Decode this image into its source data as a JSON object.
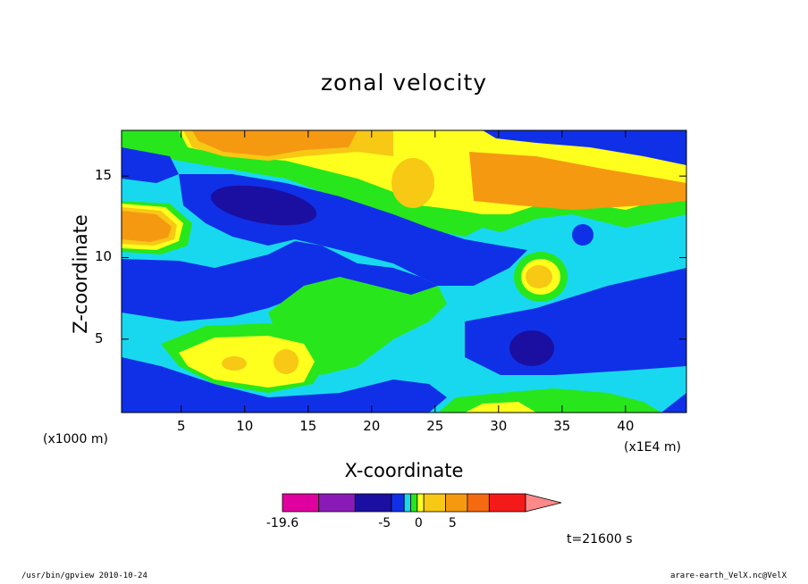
{
  "chart_data": {
    "type": "heatmap",
    "title": "zonal velocity",
    "xlabel": "X-coordinate",
    "ylabel": "Z-coordinate",
    "x_unit": "(x1000 m)",
    "x_scale": "(x1E4 m)",
    "xlim": [
      0.3,
      44.8
    ],
    "ylim": [
      0.5,
      17.8
    ],
    "x_ticks": [
      5,
      10,
      15,
      20,
      25,
      30,
      35,
      40
    ],
    "y_ticks": [
      5,
      10,
      15
    ],
    "colorbar": {
      "colors": [
        "#e0009f",
        "#8a1ab8",
        "#1a0fa0",
        "#1030e8",
        "#18d8f0",
        "#28e61c",
        "#ffff1e",
        "#f7c814",
        "#f59a10",
        "#f56a10",
        "#f51a1a",
        "#ff8888"
      ],
      "labels": [
        {
          "text": "-19.6",
          "frac": 0.0
        },
        {
          "text": "-5",
          "frac": 0.42
        },
        {
          "text": "0",
          "frac": 0.56
        },
        {
          "text": "5",
          "frac": 0.7
        }
      ]
    },
    "time": "t=21600 s"
  },
  "footer": {
    "left": "/usr/bin/gpview  2010-10-24",
    "right": "arare-earth_VelX.nc@VelX"
  }
}
